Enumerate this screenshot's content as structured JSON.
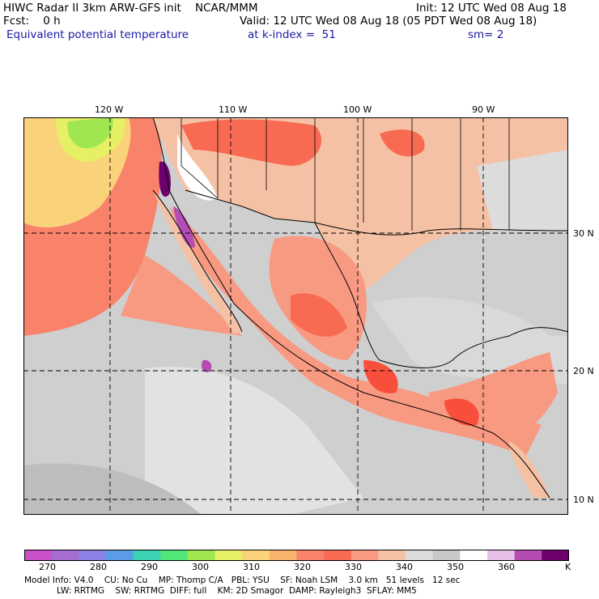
{
  "header": {
    "line1_left": "HIWC Radar II 3km ARW-GFS init    NCAR/MMM",
    "line1_right": "Init: 12 UTC Wed 08 Aug 18",
    "line2_left": "Fcst:    0 h",
    "line2_right": "Valid: 12 UTC Wed 08 Aug 18 (05 PDT Wed 08 Aug 18)",
    "line3_field": "Equivalent potential temperature",
    "line3_level": "at k-index =  51",
    "line3_sm": "sm= 2"
  },
  "map": {
    "lon_labels": [
      "120 W",
      "110 W",
      "100 W",
      "90 W"
    ],
    "lat_labels": [
      "30 N",
      "20 N",
      "10 N"
    ],
    "ocean_color": "#cfcfcf",
    "land_color": "#f5c1a4",
    "warm_color": "#f86a52",
    "hot_color": "#fa4e3c"
  },
  "colorbar": {
    "colors": [
      "#c850c8",
      "#a66cd0",
      "#8c82e6",
      "#5a9ce6",
      "#3cd2b4",
      "#50e678",
      "#a0e650",
      "#e6f064",
      "#fad27a",
      "#f8b26e",
      "#f8826a",
      "#f86a52",
      "#f89a82",
      "#f5c1a4",
      "#dcdcdc",
      "#c8c8c8",
      "#ffffff",
      "#e6c0e6",
      "#b44cb4",
      "#6e006e"
    ],
    "tick_labels": [
      "270",
      "280",
      "290",
      "300",
      "310",
      "320",
      "330",
      "340",
      "350",
      "360"
    ],
    "unit": "K"
  },
  "model_info": {
    "line1": "Model Info: V4.0    CU: No Cu    MP: Thomp C/A   PBL: YSU    SF: Noah LSM    3.0 km   51 levels   12 sec",
    "line2": "            LW: RRTMG    SW: RRTMG  DIFF: full    KM: 2D Smagor  DAMP: Rayleigh3  SFLAY: MM5"
  }
}
